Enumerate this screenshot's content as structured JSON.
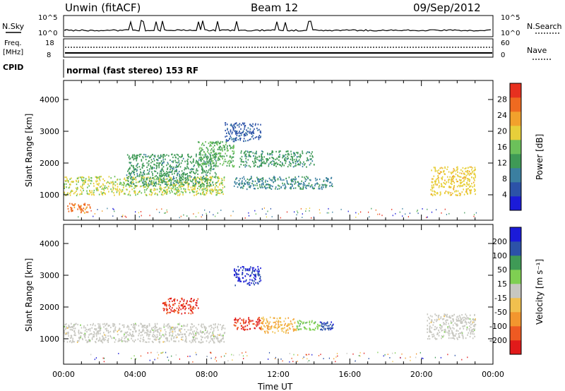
{
  "header": {
    "station": "Unwin (fitACF)",
    "beam": "Beam 12",
    "date": "09/Sep/2012"
  },
  "nsky_panel": {
    "left_label": "N.Sky",
    "right_label": "N.Search",
    "left_ticks": [
      "10^5",
      "10^0"
    ],
    "right_ticks": [
      "10^5",
      "10^0"
    ]
  },
  "freq_panel": {
    "left_label_line1": "Freq.",
    "left_label_line2": "[MHz]",
    "right_label": "Nave",
    "left_ticks": [
      "18",
      "8"
    ],
    "right_ticks": [
      "60",
      "0"
    ]
  },
  "cpid": {
    "label": "CPID",
    "mode": "normal (fast stereo) 153 RF"
  },
  "colors": {
    "power_scale": [
      "#1b1bd8",
      "#2c52a8",
      "#3b7fa0",
      "#3f9a56",
      "#6cc05a",
      "#e7cf3a",
      "#f2a12c",
      "#ef6a20",
      "#e7301f"
    ],
    "velocity_scale": [
      "#e11a1a",
      "#ee5a22",
      "#f3962e",
      "#f1c04e",
      "#c7c7c0",
      "#7fcf52",
      "#3f9a56",
      "#2c52a8",
      "#1b1bd8"
    ]
  },
  "chart_data": [
    {
      "type": "heatmap",
      "panel": "power",
      "ylabel": "Slant Range [km]",
      "yticks": [
        "1000",
        "2000",
        "3000",
        "4000"
      ],
      "ylim": [
        200,
        4600
      ],
      "xlim": [
        0,
        24
      ],
      "colorbar": {
        "label": "Power [dB]",
        "ticks": [
          "4",
          "8",
          "12",
          "16",
          "20",
          "24",
          "28"
        ],
        "range": [
          0,
          32
        ]
      },
      "regions": [
        {
          "x": [
            0.0,
            9.0
          ],
          "y": [
            1000,
            1600
          ],
          "value": 18
        },
        {
          "x": [
            0.2,
            1.5
          ],
          "y": [
            450,
            750
          ],
          "value": 26
        },
        {
          "x": [
            3.5,
            8.5
          ],
          "y": [
            1300,
            2300
          ],
          "value": 12
        },
        {
          "x": [
            7.5,
            9.5
          ],
          "y": [
            1900,
            2700
          ],
          "value": 14
        },
        {
          "x": [
            9.0,
            11.0
          ],
          "y": [
            2700,
            3300
          ],
          "value": 6
        },
        {
          "x": [
            9.5,
            15.0
          ],
          "y": [
            1200,
            1600
          ],
          "value": 10
        },
        {
          "x": [
            9.8,
            14.0
          ],
          "y": [
            1900,
            2400
          ],
          "value": 12
        },
        {
          "x": [
            20.5,
            23.0
          ],
          "y": [
            1000,
            1900
          ],
          "value": 20
        }
      ]
    },
    {
      "type": "heatmap",
      "panel": "velocity",
      "ylabel": "Slant Range [km]",
      "xlabel": "Time UT",
      "yticks": [
        "1000",
        "2000",
        "3000",
        "4000"
      ],
      "xticks": [
        "00:00",
        "04:00",
        "08:00",
        "12:00",
        "16:00",
        "20:00",
        "00:00"
      ],
      "ylim": [
        200,
        4600
      ],
      "xlim": [
        0,
        24
      ],
      "colorbar": {
        "label": "Velocity [m s⁻¹]",
        "ticks": [
          "200",
          "100",
          "50",
          "15",
          "-15",
          "-50",
          "-100",
          "-200"
        ],
        "range": [
          -250,
          250
        ]
      },
      "regions": [
        {
          "x": [
            0.0,
            9.0
          ],
          "y": [
            900,
            1500
          ],
          "value": 0
        },
        {
          "x": [
            5.5,
            7.5
          ],
          "y": [
            1800,
            2300
          ],
          "value": -200
        },
        {
          "x": [
            9.5,
            11.0
          ],
          "y": [
            1300,
            1700
          ],
          "value": -200
        },
        {
          "x": [
            11.0,
            13.0
          ],
          "y": [
            1200,
            1700
          ],
          "value": -70
        },
        {
          "x": [
            13.0,
            14.3
          ],
          "y": [
            1300,
            1600
          ],
          "value": 60
        },
        {
          "x": [
            14.3,
            15.1
          ],
          "y": [
            1300,
            1550
          ],
          "value": 180
        },
        {
          "x": [
            9.5,
            11.0
          ],
          "y": [
            2700,
            3300
          ],
          "value": 200
        },
        {
          "x": [
            20.3,
            23.0
          ],
          "y": [
            1000,
            1800
          ],
          "value": 0
        }
      ]
    }
  ]
}
